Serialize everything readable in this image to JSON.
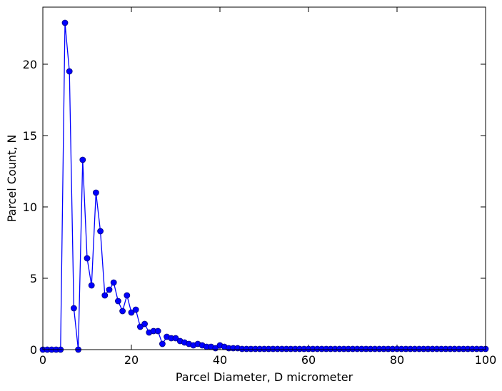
{
  "chart_data": {
    "type": "line",
    "title": "",
    "xlabel": "Parcel Diameter, D micrometer",
    "ylabel": "Parcel Count, N",
    "xlim": [
      0,
      100
    ],
    "ylim": [
      0,
      24
    ],
    "xticks": [
      0,
      20,
      40,
      60,
      80,
      100
    ],
    "yticks": [
      0,
      5,
      10,
      15,
      20
    ],
    "grid": false,
    "legend": "none",
    "series_color": "#0000ff",
    "marker": "circle",
    "series": [
      {
        "x": [
          0,
          1,
          2,
          3,
          4,
          5,
          6,
          7,
          8,
          9,
          10,
          11,
          12,
          13,
          14,
          15,
          16,
          17,
          18,
          19,
          20,
          21,
          22,
          23,
          24,
          25,
          26,
          27,
          28,
          29,
          30,
          31,
          32,
          33,
          34,
          35,
          36,
          37,
          38,
          39,
          40,
          41,
          42,
          43,
          44,
          45,
          46,
          47,
          48,
          49,
          50,
          51,
          52,
          53,
          54,
          55,
          56,
          57,
          58,
          59,
          60,
          61,
          62,
          63,
          64,
          65,
          66,
          67,
          68,
          69,
          70,
          71,
          72,
          73,
          74,
          75,
          76,
          77,
          78,
          79,
          80,
          81,
          82,
          83,
          84,
          85,
          86,
          87,
          88,
          89,
          90,
          91,
          92,
          93,
          94,
          95,
          96,
          97,
          98,
          99,
          100
        ],
        "values": [
          0,
          0,
          0,
          0,
          0,
          22.9,
          19.5,
          2.9,
          0,
          13.3,
          6.4,
          4.5,
          11.0,
          8.3,
          3.8,
          4.2,
          4.7,
          3.4,
          2.7,
          3.8,
          2.6,
          2.8,
          1.6,
          1.8,
          1.2,
          1.3,
          1.3,
          0.4,
          0.9,
          0.8,
          0.8,
          0.6,
          0.5,
          0.4,
          0.3,
          0.4,
          0.3,
          0.2,
          0.2,
          0.1,
          0.3,
          0.2,
          0.1,
          0.1,
          0.1,
          0.05,
          0.05,
          0.05,
          0.05,
          0.05,
          0.05,
          0.05,
          0.05,
          0.05,
          0.05,
          0.05,
          0.05,
          0.05,
          0.05,
          0.05,
          0.05,
          0.05,
          0.05,
          0.05,
          0.05,
          0.05,
          0.05,
          0.05,
          0.05,
          0.05,
          0.05,
          0.05,
          0.05,
          0.05,
          0.05,
          0.05,
          0.05,
          0.05,
          0.05,
          0.05,
          0.05,
          0.05,
          0.05,
          0.05,
          0.05,
          0.05,
          0.05,
          0.05,
          0.05,
          0.05,
          0.05,
          0.05,
          0.05,
          0.05,
          0.05,
          0.05,
          0.05,
          0.05,
          0.05,
          0.05,
          0.05
        ]
      }
    ]
  }
}
